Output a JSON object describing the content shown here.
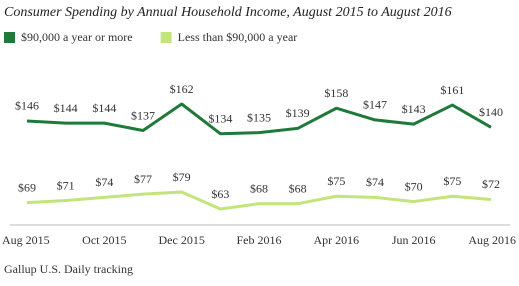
{
  "chart_data": {
    "type": "line",
    "title": "Consumer Spending by Annual Household Income, August 2015 to August 2016",
    "categories": [
      "Aug 2015",
      null,
      "Oct 2015",
      null,
      "Dec 2015",
      null,
      "Feb 2016",
      null,
      "Apr 2016",
      null,
      "Jun 2016",
      null,
      "Aug 2016"
    ],
    "series": [
      {
        "name": "$90,000 a year or more",
        "color": "#1f7a3a",
        "values": [
          146,
          144,
          144,
          137,
          162,
          134,
          135,
          139,
          158,
          147,
          143,
          161,
          140
        ],
        "value_labels": [
          "$146",
          "$144",
          "$144",
          "$137",
          "$162",
          "$134",
          "$135",
          "$139",
          "$158",
          "$147",
          "$143",
          "$161",
          "$140"
        ]
      },
      {
        "name": "Less than $90,000 a year",
        "color": "#c3e47a",
        "values": [
          69,
          71,
          74,
          77,
          79,
          63,
          68,
          68,
          75,
          74,
          70,
          75,
          72
        ],
        "value_labels": [
          "$69",
          "$71",
          "$74",
          "$77",
          "$79",
          "$63",
          "$68",
          "$68",
          "$75",
          "$74",
          "$70",
          "$75",
          "$72"
        ]
      }
    ],
    "source": "Gallup U.S. Daily tracking"
  }
}
